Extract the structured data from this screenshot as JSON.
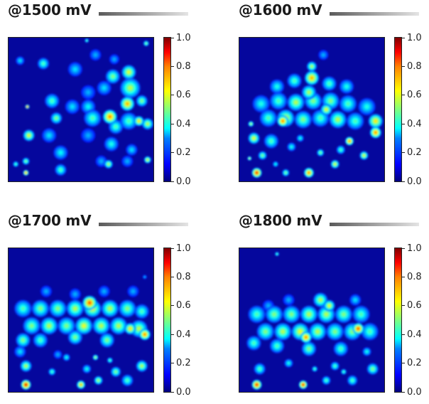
{
  "chart_data": [
    {
      "type": "heatmap",
      "title": "@1500 mV",
      "colorbar": {
        "colormap": "jet",
        "range": [
          0.0,
          1.0
        ],
        "ticks": [
          "0.0",
          "0.2",
          "0.4",
          "0.6",
          "0.8",
          "1.0"
        ]
      },
      "peaks": [
        {
          "x": 0.84,
          "y": 0.35,
          "v": 0.55,
          "r": 0.07
        },
        {
          "x": 0.83,
          "y": 0.24,
          "v": 0.6,
          "r": 0.05
        },
        {
          "x": 0.82,
          "y": 0.46,
          "v": 0.7,
          "r": 0.05
        },
        {
          "x": 0.83,
          "y": 0.58,
          "v": 0.45,
          "r": 0.06
        },
        {
          "x": 0.96,
          "y": 0.6,
          "v": 0.55,
          "r": 0.04
        },
        {
          "x": 0.74,
          "y": 0.62,
          "v": 0.45,
          "r": 0.05
        },
        {
          "x": 0.7,
          "y": 0.55,
          "v": 0.75,
          "r": 0.05
        },
        {
          "x": 0.72,
          "y": 0.27,
          "v": 0.5,
          "r": 0.05
        },
        {
          "x": 0.66,
          "y": 0.35,
          "v": 0.35,
          "r": 0.05
        },
        {
          "x": 0.55,
          "y": 0.48,
          "v": 0.38,
          "r": 0.05
        },
        {
          "x": 0.58,
          "y": 0.56,
          "v": 0.45,
          "r": 0.06
        },
        {
          "x": 0.55,
          "y": 0.68,
          "v": 0.3,
          "r": 0.05
        },
        {
          "x": 0.46,
          "y": 0.22,
          "v": 0.35,
          "r": 0.05
        },
        {
          "x": 0.44,
          "y": 0.48,
          "v": 0.35,
          "r": 0.05
        },
        {
          "x": 0.3,
          "y": 0.44,
          "v": 0.45,
          "r": 0.05
        },
        {
          "x": 0.33,
          "y": 0.56,
          "v": 0.5,
          "r": 0.04
        },
        {
          "x": 0.28,
          "y": 0.68,
          "v": 0.35,
          "r": 0.05
        },
        {
          "x": 0.24,
          "y": 0.18,
          "v": 0.45,
          "r": 0.04
        },
        {
          "x": 0.36,
          "y": 0.8,
          "v": 0.38,
          "r": 0.05
        },
        {
          "x": 0.71,
          "y": 0.74,
          "v": 0.4,
          "r": 0.05
        },
        {
          "x": 0.14,
          "y": 0.68,
          "v": 0.6,
          "r": 0.04
        },
        {
          "x": 0.92,
          "y": 0.44,
          "v": 0.5,
          "r": 0.04
        },
        {
          "x": 0.6,
          "y": 0.12,
          "v": 0.3,
          "r": 0.04
        },
        {
          "x": 0.08,
          "y": 0.16,
          "v": 0.35,
          "r": 0.03
        },
        {
          "x": 0.64,
          "y": 0.86,
          "v": 0.3,
          "r": 0.04
        },
        {
          "x": 0.36,
          "y": 0.92,
          "v": 0.45,
          "r": 0.04
        },
        {
          "x": 0.85,
          "y": 0.78,
          "v": 0.35,
          "r": 0.04
        },
        {
          "x": 0.96,
          "y": 0.85,
          "v": 0.6,
          "r": 0.025
        },
        {
          "x": 0.12,
          "y": 0.86,
          "v": 0.5,
          "r": 0.025
        },
        {
          "x": 0.12,
          "y": 0.94,
          "v": 0.75,
          "r": 0.02
        },
        {
          "x": 0.13,
          "y": 0.48,
          "v": 0.8,
          "r": 0.015
        },
        {
          "x": 0.95,
          "y": 0.04,
          "v": 0.5,
          "r": 0.02
        },
        {
          "x": 0.54,
          "y": 0.02,
          "v": 0.45,
          "r": 0.015
        },
        {
          "x": 0.05,
          "y": 0.88,
          "v": 0.45,
          "r": 0.02
        },
        {
          "x": 0.69,
          "y": 0.88,
          "v": 0.55,
          "r": 0.03
        },
        {
          "x": 0.82,
          "y": 0.86,
          "v": 0.3,
          "r": 0.04
        },
        {
          "x": 0.73,
          "y": 0.15,
          "v": 0.3,
          "r": 0.035
        },
        {
          "x": 0.9,
          "y": 0.58,
          "v": 0.65,
          "r": 0.035
        },
        {
          "x": 0.55,
          "y": 0.38,
          "v": 0.3,
          "r": 0.05
        }
      ]
    },
    {
      "type": "heatmap",
      "title": "@1600 mV",
      "colorbar": {
        "colormap": "jet",
        "range": [
          0.0,
          1.0
        ],
        "ticks": [
          "0.0",
          "0.2",
          "0.4",
          "0.6",
          "0.8",
          "1.0"
        ]
      },
      "peaks": [
        {
          "x": 0.15,
          "y": 0.46,
          "v": 0.4,
          "r": 0.06
        },
        {
          "x": 0.27,
          "y": 0.44,
          "v": 0.45,
          "r": 0.06
        },
        {
          "x": 0.39,
          "y": 0.45,
          "v": 0.55,
          "r": 0.06
        },
        {
          "x": 0.51,
          "y": 0.44,
          "v": 0.5,
          "r": 0.06
        },
        {
          "x": 0.63,
          "y": 0.44,
          "v": 0.5,
          "r": 0.06
        },
        {
          "x": 0.75,
          "y": 0.46,
          "v": 0.45,
          "r": 0.06
        },
        {
          "x": 0.88,
          "y": 0.48,
          "v": 0.4,
          "r": 0.06
        },
        {
          "x": 0.2,
          "y": 0.56,
          "v": 0.45,
          "r": 0.06
        },
        {
          "x": 0.32,
          "y": 0.56,
          "v": 0.6,
          "r": 0.06
        },
        {
          "x": 0.44,
          "y": 0.57,
          "v": 0.5,
          "r": 0.06
        },
        {
          "x": 0.56,
          "y": 0.56,
          "v": 0.45,
          "r": 0.06
        },
        {
          "x": 0.68,
          "y": 0.57,
          "v": 0.55,
          "r": 0.06
        },
        {
          "x": 0.8,
          "y": 0.58,
          "v": 0.45,
          "r": 0.06
        },
        {
          "x": 0.94,
          "y": 0.58,
          "v": 0.65,
          "r": 0.05
        },
        {
          "x": 0.1,
          "y": 0.7,
          "v": 0.6,
          "r": 0.04
        },
        {
          "x": 0.22,
          "y": 0.72,
          "v": 0.45,
          "r": 0.05
        },
        {
          "x": 0.48,
          "y": 0.38,
          "v": 0.55,
          "r": 0.05
        },
        {
          "x": 0.5,
          "y": 0.28,
          "v": 0.7,
          "r": 0.05
        },
        {
          "x": 0.38,
          "y": 0.3,
          "v": 0.45,
          "r": 0.05
        },
        {
          "x": 0.62,
          "y": 0.32,
          "v": 0.45,
          "r": 0.05
        },
        {
          "x": 0.74,
          "y": 0.34,
          "v": 0.4,
          "r": 0.05
        },
        {
          "x": 0.26,
          "y": 0.34,
          "v": 0.4,
          "r": 0.05
        },
        {
          "x": 0.3,
          "y": 0.58,
          "v": 0.75,
          "r": 0.04
        },
        {
          "x": 0.6,
          "y": 0.5,
          "v": 0.6,
          "r": 0.04
        },
        {
          "x": 0.94,
          "y": 0.66,
          "v": 0.75,
          "r": 0.04
        },
        {
          "x": 0.12,
          "y": 0.94,
          "v": 0.85,
          "r": 0.035
        },
        {
          "x": 0.48,
          "y": 0.94,
          "v": 0.75,
          "r": 0.035
        },
        {
          "x": 0.32,
          "y": 0.94,
          "v": 0.5,
          "r": 0.025
        },
        {
          "x": 0.08,
          "y": 0.6,
          "v": 0.55,
          "r": 0.02
        },
        {
          "x": 0.36,
          "y": 0.76,
          "v": 0.4,
          "r": 0.03
        },
        {
          "x": 0.56,
          "y": 0.8,
          "v": 0.5,
          "r": 0.025
        },
        {
          "x": 0.7,
          "y": 0.78,
          "v": 0.45,
          "r": 0.03
        },
        {
          "x": 0.86,
          "y": 0.82,
          "v": 0.6,
          "r": 0.03
        },
        {
          "x": 0.66,
          "y": 0.88,
          "v": 0.6,
          "r": 0.03
        },
        {
          "x": 0.5,
          "y": 0.2,
          "v": 0.55,
          "r": 0.035
        },
        {
          "x": 0.58,
          "y": 0.12,
          "v": 0.3,
          "r": 0.035
        },
        {
          "x": 0.76,
          "y": 0.72,
          "v": 0.75,
          "r": 0.03
        },
        {
          "x": 0.42,
          "y": 0.7,
          "v": 0.4,
          "r": 0.025
        },
        {
          "x": 0.16,
          "y": 0.82,
          "v": 0.5,
          "r": 0.03
        },
        {
          "x": 0.07,
          "y": 0.84,
          "v": 0.55,
          "r": 0.015
        },
        {
          "x": 0.25,
          "y": 0.88,
          "v": 0.4,
          "r": 0.02
        }
      ]
    },
    {
      "type": "heatmap",
      "title": "@1700 mV",
      "colorbar": {
        "colormap": "jet",
        "range": [
          0.0,
          1.0
        ],
        "ticks": [
          "0.0",
          "0.2",
          "0.4",
          "0.6",
          "0.8",
          "1.0"
        ]
      },
      "peaks": [
        {
          "x": 0.1,
          "y": 0.42,
          "v": 0.45,
          "r": 0.06
        },
        {
          "x": 0.22,
          "y": 0.42,
          "v": 0.5,
          "r": 0.06
        },
        {
          "x": 0.34,
          "y": 0.42,
          "v": 0.5,
          "r": 0.06
        },
        {
          "x": 0.46,
          "y": 0.42,
          "v": 0.55,
          "r": 0.06
        },
        {
          "x": 0.58,
          "y": 0.42,
          "v": 0.6,
          "r": 0.06
        },
        {
          "x": 0.7,
          "y": 0.42,
          "v": 0.55,
          "r": 0.06
        },
        {
          "x": 0.82,
          "y": 0.42,
          "v": 0.5,
          "r": 0.06
        },
        {
          "x": 0.92,
          "y": 0.44,
          "v": 0.45,
          "r": 0.05
        },
        {
          "x": 0.16,
          "y": 0.54,
          "v": 0.5,
          "r": 0.06
        },
        {
          "x": 0.28,
          "y": 0.54,
          "v": 0.55,
          "r": 0.06
        },
        {
          "x": 0.4,
          "y": 0.54,
          "v": 0.5,
          "r": 0.06
        },
        {
          "x": 0.52,
          "y": 0.54,
          "v": 0.6,
          "r": 0.06
        },
        {
          "x": 0.64,
          "y": 0.54,
          "v": 0.55,
          "r": 0.06
        },
        {
          "x": 0.76,
          "y": 0.54,
          "v": 0.55,
          "r": 0.06
        },
        {
          "x": 0.9,
          "y": 0.56,
          "v": 0.55,
          "r": 0.06
        },
        {
          "x": 0.56,
          "y": 0.38,
          "v": 0.8,
          "r": 0.05
        },
        {
          "x": 0.84,
          "y": 0.56,
          "v": 0.65,
          "r": 0.04
        },
        {
          "x": 0.94,
          "y": 0.6,
          "v": 0.75,
          "r": 0.04
        },
        {
          "x": 0.1,
          "y": 0.64,
          "v": 0.5,
          "r": 0.05
        },
        {
          "x": 0.22,
          "y": 0.64,
          "v": 0.45,
          "r": 0.05
        },
        {
          "x": 0.46,
          "y": 0.62,
          "v": 0.5,
          "r": 0.05
        },
        {
          "x": 0.68,
          "y": 0.64,
          "v": 0.5,
          "r": 0.05
        },
        {
          "x": 0.12,
          "y": 0.82,
          "v": 0.55,
          "r": 0.04
        },
        {
          "x": 0.12,
          "y": 0.95,
          "v": 0.9,
          "r": 0.035
        },
        {
          "x": 0.5,
          "y": 0.95,
          "v": 0.7,
          "r": 0.03
        },
        {
          "x": 0.62,
          "y": 0.92,
          "v": 0.55,
          "r": 0.03
        },
        {
          "x": 0.82,
          "y": 0.92,
          "v": 0.45,
          "r": 0.04
        },
        {
          "x": 0.92,
          "y": 0.82,
          "v": 0.55,
          "r": 0.04
        },
        {
          "x": 0.54,
          "y": 0.84,
          "v": 0.4,
          "r": 0.03
        },
        {
          "x": 0.74,
          "y": 0.86,
          "v": 0.5,
          "r": 0.035
        },
        {
          "x": 0.3,
          "y": 0.86,
          "v": 0.45,
          "r": 0.025
        },
        {
          "x": 0.4,
          "y": 0.76,
          "v": 0.4,
          "r": 0.025
        },
        {
          "x": 0.08,
          "y": 0.72,
          "v": 0.35,
          "r": 0.04
        },
        {
          "x": 0.46,
          "y": 0.32,
          "v": 0.3,
          "r": 0.04
        },
        {
          "x": 0.66,
          "y": 0.3,
          "v": 0.3,
          "r": 0.04
        },
        {
          "x": 0.86,
          "y": 0.3,
          "v": 0.3,
          "r": 0.04
        },
        {
          "x": 0.26,
          "y": 0.3,
          "v": 0.3,
          "r": 0.04
        },
        {
          "x": 0.34,
          "y": 0.74,
          "v": 0.3,
          "r": 0.03
        },
        {
          "x": 0.6,
          "y": 0.76,
          "v": 0.55,
          "r": 0.02
        },
        {
          "x": 0.7,
          "y": 0.78,
          "v": 0.45,
          "r": 0.02
        },
        {
          "x": 0.94,
          "y": 0.2,
          "v": 0.3,
          "r": 0.015
        }
      ]
    },
    {
      "type": "heatmap",
      "title": "@1800 mV",
      "colorbar": {
        "colormap": "jet",
        "range": [
          0.0,
          1.0
        ],
        "ticks": [
          "0.0",
          "0.2",
          "0.4",
          "0.6",
          "0.8",
          "1.0"
        ]
      },
      "peaks": [
        {
          "x": 0.12,
          "y": 0.46,
          "v": 0.45,
          "r": 0.06
        },
        {
          "x": 0.24,
          "y": 0.46,
          "v": 0.5,
          "r": 0.06
        },
        {
          "x": 0.36,
          "y": 0.46,
          "v": 0.5,
          "r": 0.06
        },
        {
          "x": 0.48,
          "y": 0.46,
          "v": 0.55,
          "r": 0.06
        },
        {
          "x": 0.6,
          "y": 0.46,
          "v": 0.55,
          "r": 0.06
        },
        {
          "x": 0.72,
          "y": 0.46,
          "v": 0.5,
          "r": 0.06
        },
        {
          "x": 0.84,
          "y": 0.46,
          "v": 0.45,
          "r": 0.06
        },
        {
          "x": 0.18,
          "y": 0.58,
          "v": 0.5,
          "r": 0.06
        },
        {
          "x": 0.3,
          "y": 0.58,
          "v": 0.55,
          "r": 0.06
        },
        {
          "x": 0.42,
          "y": 0.58,
          "v": 0.6,
          "r": 0.06
        },
        {
          "x": 0.54,
          "y": 0.58,
          "v": 0.55,
          "r": 0.06
        },
        {
          "x": 0.66,
          "y": 0.58,
          "v": 0.5,
          "r": 0.06
        },
        {
          "x": 0.78,
          "y": 0.58,
          "v": 0.5,
          "r": 0.06
        },
        {
          "x": 0.9,
          "y": 0.58,
          "v": 0.45,
          "r": 0.06
        },
        {
          "x": 0.56,
          "y": 0.36,
          "v": 0.55,
          "r": 0.05
        },
        {
          "x": 0.46,
          "y": 0.62,
          "v": 0.75,
          "r": 0.04
        },
        {
          "x": 0.82,
          "y": 0.56,
          "v": 0.8,
          "r": 0.04
        },
        {
          "x": 0.62,
          "y": 0.4,
          "v": 0.6,
          "r": 0.04
        },
        {
          "x": 0.1,
          "y": 0.66,
          "v": 0.45,
          "r": 0.05
        },
        {
          "x": 0.26,
          "y": 0.68,
          "v": 0.45,
          "r": 0.05
        },
        {
          "x": 0.48,
          "y": 0.7,
          "v": 0.5,
          "r": 0.05
        },
        {
          "x": 0.7,
          "y": 0.7,
          "v": 0.45,
          "r": 0.05
        },
        {
          "x": 0.14,
          "y": 0.84,
          "v": 0.45,
          "r": 0.04
        },
        {
          "x": 0.12,
          "y": 0.95,
          "v": 0.85,
          "r": 0.035
        },
        {
          "x": 0.44,
          "y": 0.95,
          "v": 0.85,
          "r": 0.03
        },
        {
          "x": 0.6,
          "y": 0.92,
          "v": 0.45,
          "r": 0.03
        },
        {
          "x": 0.78,
          "y": 0.92,
          "v": 0.45,
          "r": 0.035
        },
        {
          "x": 0.92,
          "y": 0.84,
          "v": 0.5,
          "r": 0.04
        },
        {
          "x": 0.34,
          "y": 0.8,
          "v": 0.4,
          "r": 0.03
        },
        {
          "x": 0.66,
          "y": 0.82,
          "v": 0.45,
          "r": 0.03
        },
        {
          "x": 0.2,
          "y": 0.4,
          "v": 0.3,
          "r": 0.04
        },
        {
          "x": 0.8,
          "y": 0.36,
          "v": 0.35,
          "r": 0.04
        },
        {
          "x": 0.34,
          "y": 0.36,
          "v": 0.3,
          "r": 0.04
        },
        {
          "x": 0.52,
          "y": 0.84,
          "v": 0.45,
          "r": 0.02
        },
        {
          "x": 0.72,
          "y": 0.86,
          "v": 0.45,
          "r": 0.02
        },
        {
          "x": 0.88,
          "y": 0.72,
          "v": 0.4,
          "r": 0.03
        },
        {
          "x": 0.26,
          "y": 0.04,
          "v": 0.45,
          "r": 0.015
        }
      ]
    }
  ]
}
